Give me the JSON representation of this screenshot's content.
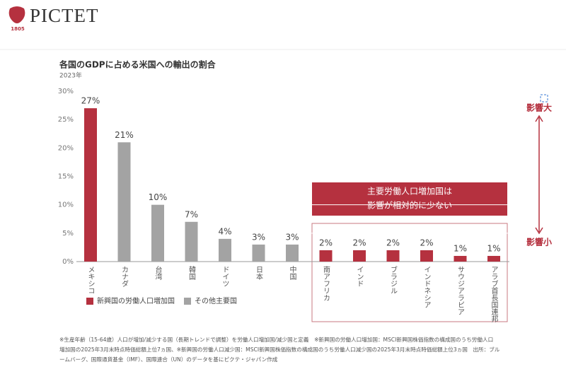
{
  "header": {
    "brand": "PICTET",
    "year": "1805"
  },
  "chart_data": {
    "type": "bar",
    "title": "各国のGDPに占める米国への輸出の割合",
    "subtitle": "2023年",
    "categories": [
      "メキシコ",
      "カナダ",
      "台湾",
      "韓国",
      "ドイツ",
      "日本",
      "中国",
      "南アフリカ",
      "インド",
      "ブラジル",
      "インドネシア",
      "サウジアラビア",
      "アラブ首長国連邦"
    ],
    "series": [
      {
        "name": "新興国の労働人口増加国",
        "color": "#b5313f",
        "values": [
          27,
          null,
          null,
          null,
          null,
          null,
          null,
          2,
          2,
          2,
          2,
          1,
          1
        ],
        "value_labels": [
          "27%",
          null,
          null,
          null,
          null,
          null,
          null,
          "2%",
          "2%",
          "2%",
          "2%",
          "1%",
          "1%"
        ]
      },
      {
        "name": "その他主要国",
        "color": "#a3a3a3",
        "values": [
          null,
          21,
          10,
          7,
          4,
          3,
          3,
          null,
          null,
          null,
          null,
          null,
          null
        ],
        "value_labels": [
          null,
          "21%",
          "10%",
          "7%",
          "4%",
          "3%",
          "3%",
          null,
          null,
          null,
          null,
          null,
          null
        ]
      }
    ],
    "ylim": [
      0,
      30
    ],
    "yticks": [
      {
        "value": 0,
        "label": "0%"
      },
      {
        "value": 5,
        "label": "5%"
      },
      {
        "value": 10,
        "label": "10%"
      },
      {
        "value": 15,
        "label": "15%"
      },
      {
        "value": 20,
        "label": "20%"
      },
      {
        "value": 25,
        "label": "25%"
      },
      {
        "value": 30,
        "label": "30%"
      }
    ],
    "annotations": {
      "box_text": [
        "主要労働人口増加国は",
        "影響が相対的に少ない"
      ],
      "high": "影響大",
      "low": "影響小"
    }
  },
  "footnote": [
    "※生産年齢（15-64歳）人口が増加/減少する国（長期トレンドで調整）を労働人口増加国/減少国と定義　※新興国の労働人口増加国：MSCI新興国株価指数の構成国のうち労働人口",
    "増加国の2025年3月末時点時価総額上位7ヵ国、※新興国の労働人口減少国：MSCI新興国株価指数の構成国のうち労働人口減少国の2025年3月末時点時価総額上位3ヵ国　出所：ブル",
    "ームバーグ、国際通貨基金（IMF）、国際連合（UN）のデータを基にピクテ・ジャパン作成"
  ]
}
